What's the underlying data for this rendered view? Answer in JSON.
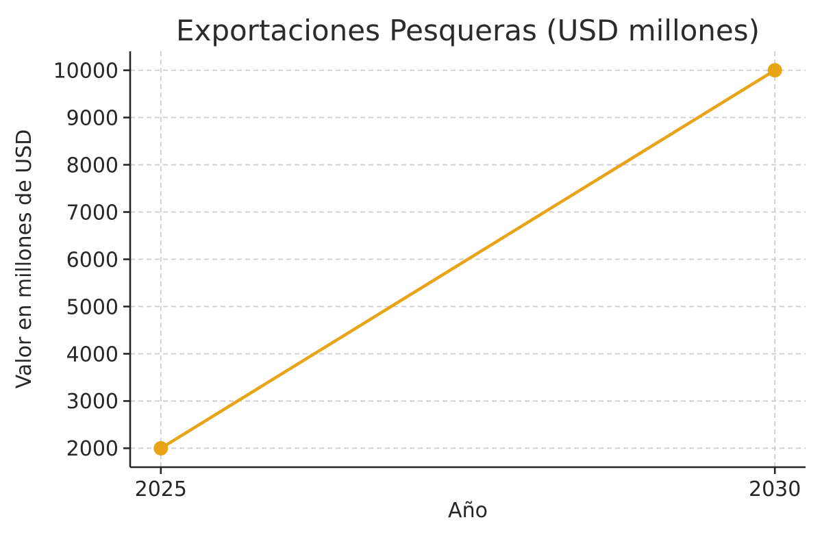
{
  "chart_data": {
    "type": "line",
    "title": "Exportaciones Pesqueras (USD millones)",
    "xlabel": "Año",
    "ylabel": "Valor en millones de USD",
    "x": [
      2025,
      2030
    ],
    "series": [
      {
        "name": "Exportaciones Pesqueras",
        "values": [
          2000,
          10000
        ]
      }
    ],
    "xticks": [
      2025,
      2030
    ],
    "yticks": [
      2000,
      3000,
      4000,
      5000,
      6000,
      7000,
      8000,
      9000,
      10000
    ],
    "xlim": [
      2024.75,
      2030.25
    ],
    "ylim": [
      1600,
      10400
    ],
    "grid": true,
    "legend": "none",
    "colors": {
      "line": "#E8A317",
      "marker": "#E8A317",
      "grid": "#cccccc",
      "spine": "#262626",
      "text": "#262626",
      "background": "#ffffff"
    }
  }
}
